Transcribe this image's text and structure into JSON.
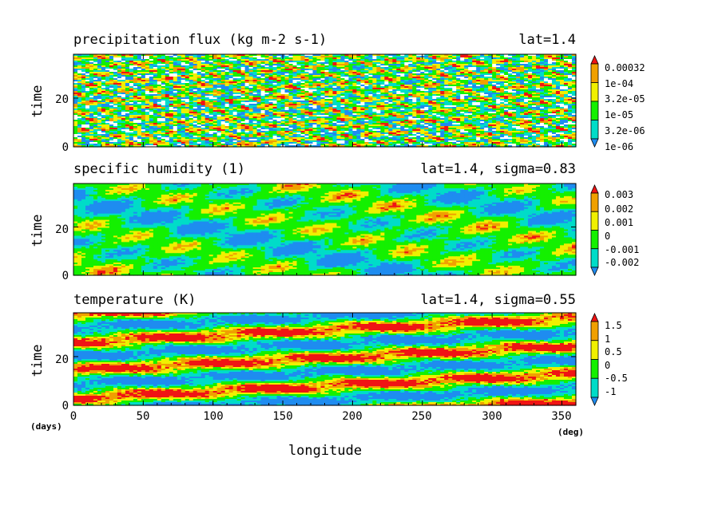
{
  "figure": {
    "xlabel": "longitude",
    "xunit": "(deg)",
    "yunit": "(days)",
    "ylabel": "time"
  },
  "palette": {
    "blue": "#1e8cf0",
    "cyan": "#00dcc8",
    "green": "#14f000",
    "yellow": "#f0f000",
    "orange": "#f0a000",
    "red": "#f01414",
    "white": "#ffffff"
  },
  "chart_data": [
    {
      "type": "heatmap",
      "title": "precipitation flux (kg m-2 s-1)",
      "subtitle": "lat=1.4",
      "xlabel": "longitude",
      "ylabel": "time",
      "xlim": [
        0,
        360
      ],
      "ylim": [
        0,
        38
      ],
      "x_ticks": [
        0,
        50,
        100,
        150,
        200,
        250,
        300,
        350
      ],
      "y_ticks": [
        0,
        20
      ],
      "colorbar_labels": [
        "1e-06",
        "3.2e-06",
        "1e-05",
        "3.2e-05",
        "1e-04",
        "0.00032"
      ],
      "colorbar_colors": [
        "#1e8cf0",
        "#00dcc8",
        "#14f000",
        "#f0f000",
        "#f0a000",
        "#f01414"
      ],
      "pattern": "noisy"
    },
    {
      "type": "heatmap",
      "title": "specific humidity (1)",
      "subtitle": "lat=1.4, sigma=0.83",
      "xlabel": "longitude",
      "ylabel": "time",
      "xlim": [
        0,
        360
      ],
      "ylim": [
        0,
        38
      ],
      "x_ticks": [
        0,
        50,
        100,
        150,
        200,
        250,
        300,
        350
      ],
      "y_ticks": [
        0,
        20
      ],
      "colorbar_labels": [
        "-0.002",
        "-0.001",
        "0",
        "0.001",
        "0.002",
        "0.003"
      ],
      "colorbar_colors": [
        "#1e8cf0",
        "#00dcc8",
        "#14f000",
        "#f0f000",
        "#f0a000",
        "#f01414"
      ],
      "pattern": "smooth"
    },
    {
      "type": "heatmap",
      "title": "temperature (K)",
      "subtitle": "lat=1.4, sigma=0.55",
      "xlabel": "longitude",
      "ylabel": "time",
      "xlim": [
        0,
        360
      ],
      "ylim": [
        0,
        38
      ],
      "x_ticks": [
        0,
        50,
        100,
        150,
        200,
        250,
        300,
        350
      ],
      "y_ticks": [
        0,
        20
      ],
      "colorbar_labels": [
        "-1",
        "-0.5",
        "0",
        "0.5",
        "1",
        "1.5"
      ],
      "colorbar_colors": [
        "#1e8cf0",
        "#00dcc8",
        "#14f000",
        "#f0f000",
        "#f0a000",
        "#f01414"
      ],
      "pattern": "bands"
    }
  ]
}
